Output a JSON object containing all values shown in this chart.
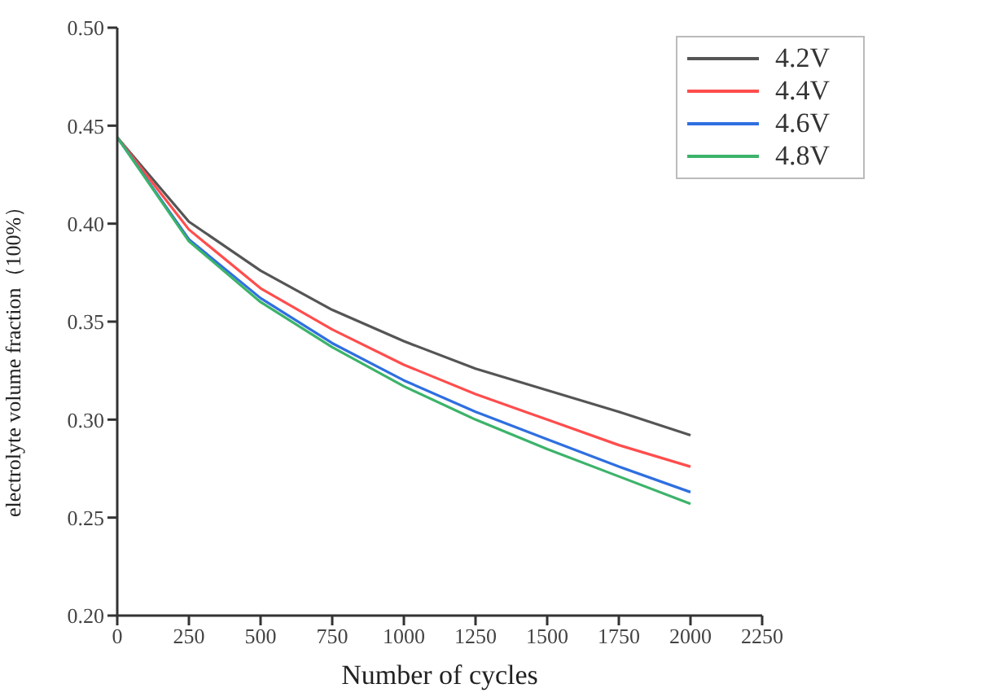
{
  "chart_data": {
    "type": "line",
    "xlabel": "Number of cycles",
    "ylabel": "electrolyte volume fraction（100%）",
    "x": [
      0,
      250,
      500,
      750,
      1000,
      1250,
      1500,
      1750,
      2000
    ],
    "series": [
      {
        "name": "4.2V",
        "color": "#555555",
        "values": [
          0.444,
          0.401,
          0.376,
          0.356,
          0.34,
          0.326,
          0.315,
          0.304,
          0.292
        ]
      },
      {
        "name": "4.4V",
        "color": "#ff4d4d",
        "values": [
          0.444,
          0.397,
          0.367,
          0.346,
          0.328,
          0.313,
          0.3,
          0.287,
          0.276
        ]
      },
      {
        "name": "4.6V",
        "color": "#2f6fe0",
        "values": [
          0.444,
          0.392,
          0.362,
          0.339,
          0.32,
          0.304,
          0.29,
          0.276,
          0.263
        ]
      },
      {
        "name": "4.8V",
        "color": "#3cb36a",
        "values": [
          0.444,
          0.391,
          0.36,
          0.337,
          0.317,
          0.3,
          0.285,
          0.271,
          0.257
        ]
      }
    ],
    "xlim": [
      0,
      2250
    ],
    "xticks": [
      0,
      250,
      500,
      750,
      1000,
      1250,
      1500,
      1750,
      2000,
      2250
    ],
    "ylim": [
      0.2,
      0.5
    ],
    "yticks": [
      {
        "value": 0.2,
        "label": "0.20"
      },
      {
        "value": 0.25,
        "label": "0.25"
      },
      {
        "value": 0.3,
        "label": "0.30"
      },
      {
        "value": 0.35,
        "label": "0.35"
      },
      {
        "value": 0.4,
        "label": "0.40"
      },
      {
        "value": 0.45,
        "label": "0.45"
      },
      {
        "value": 0.5,
        "label": "0.50"
      }
    ],
    "grid": false,
    "legend": "top right",
    "marker": "none",
    "line_style": "solid"
  }
}
